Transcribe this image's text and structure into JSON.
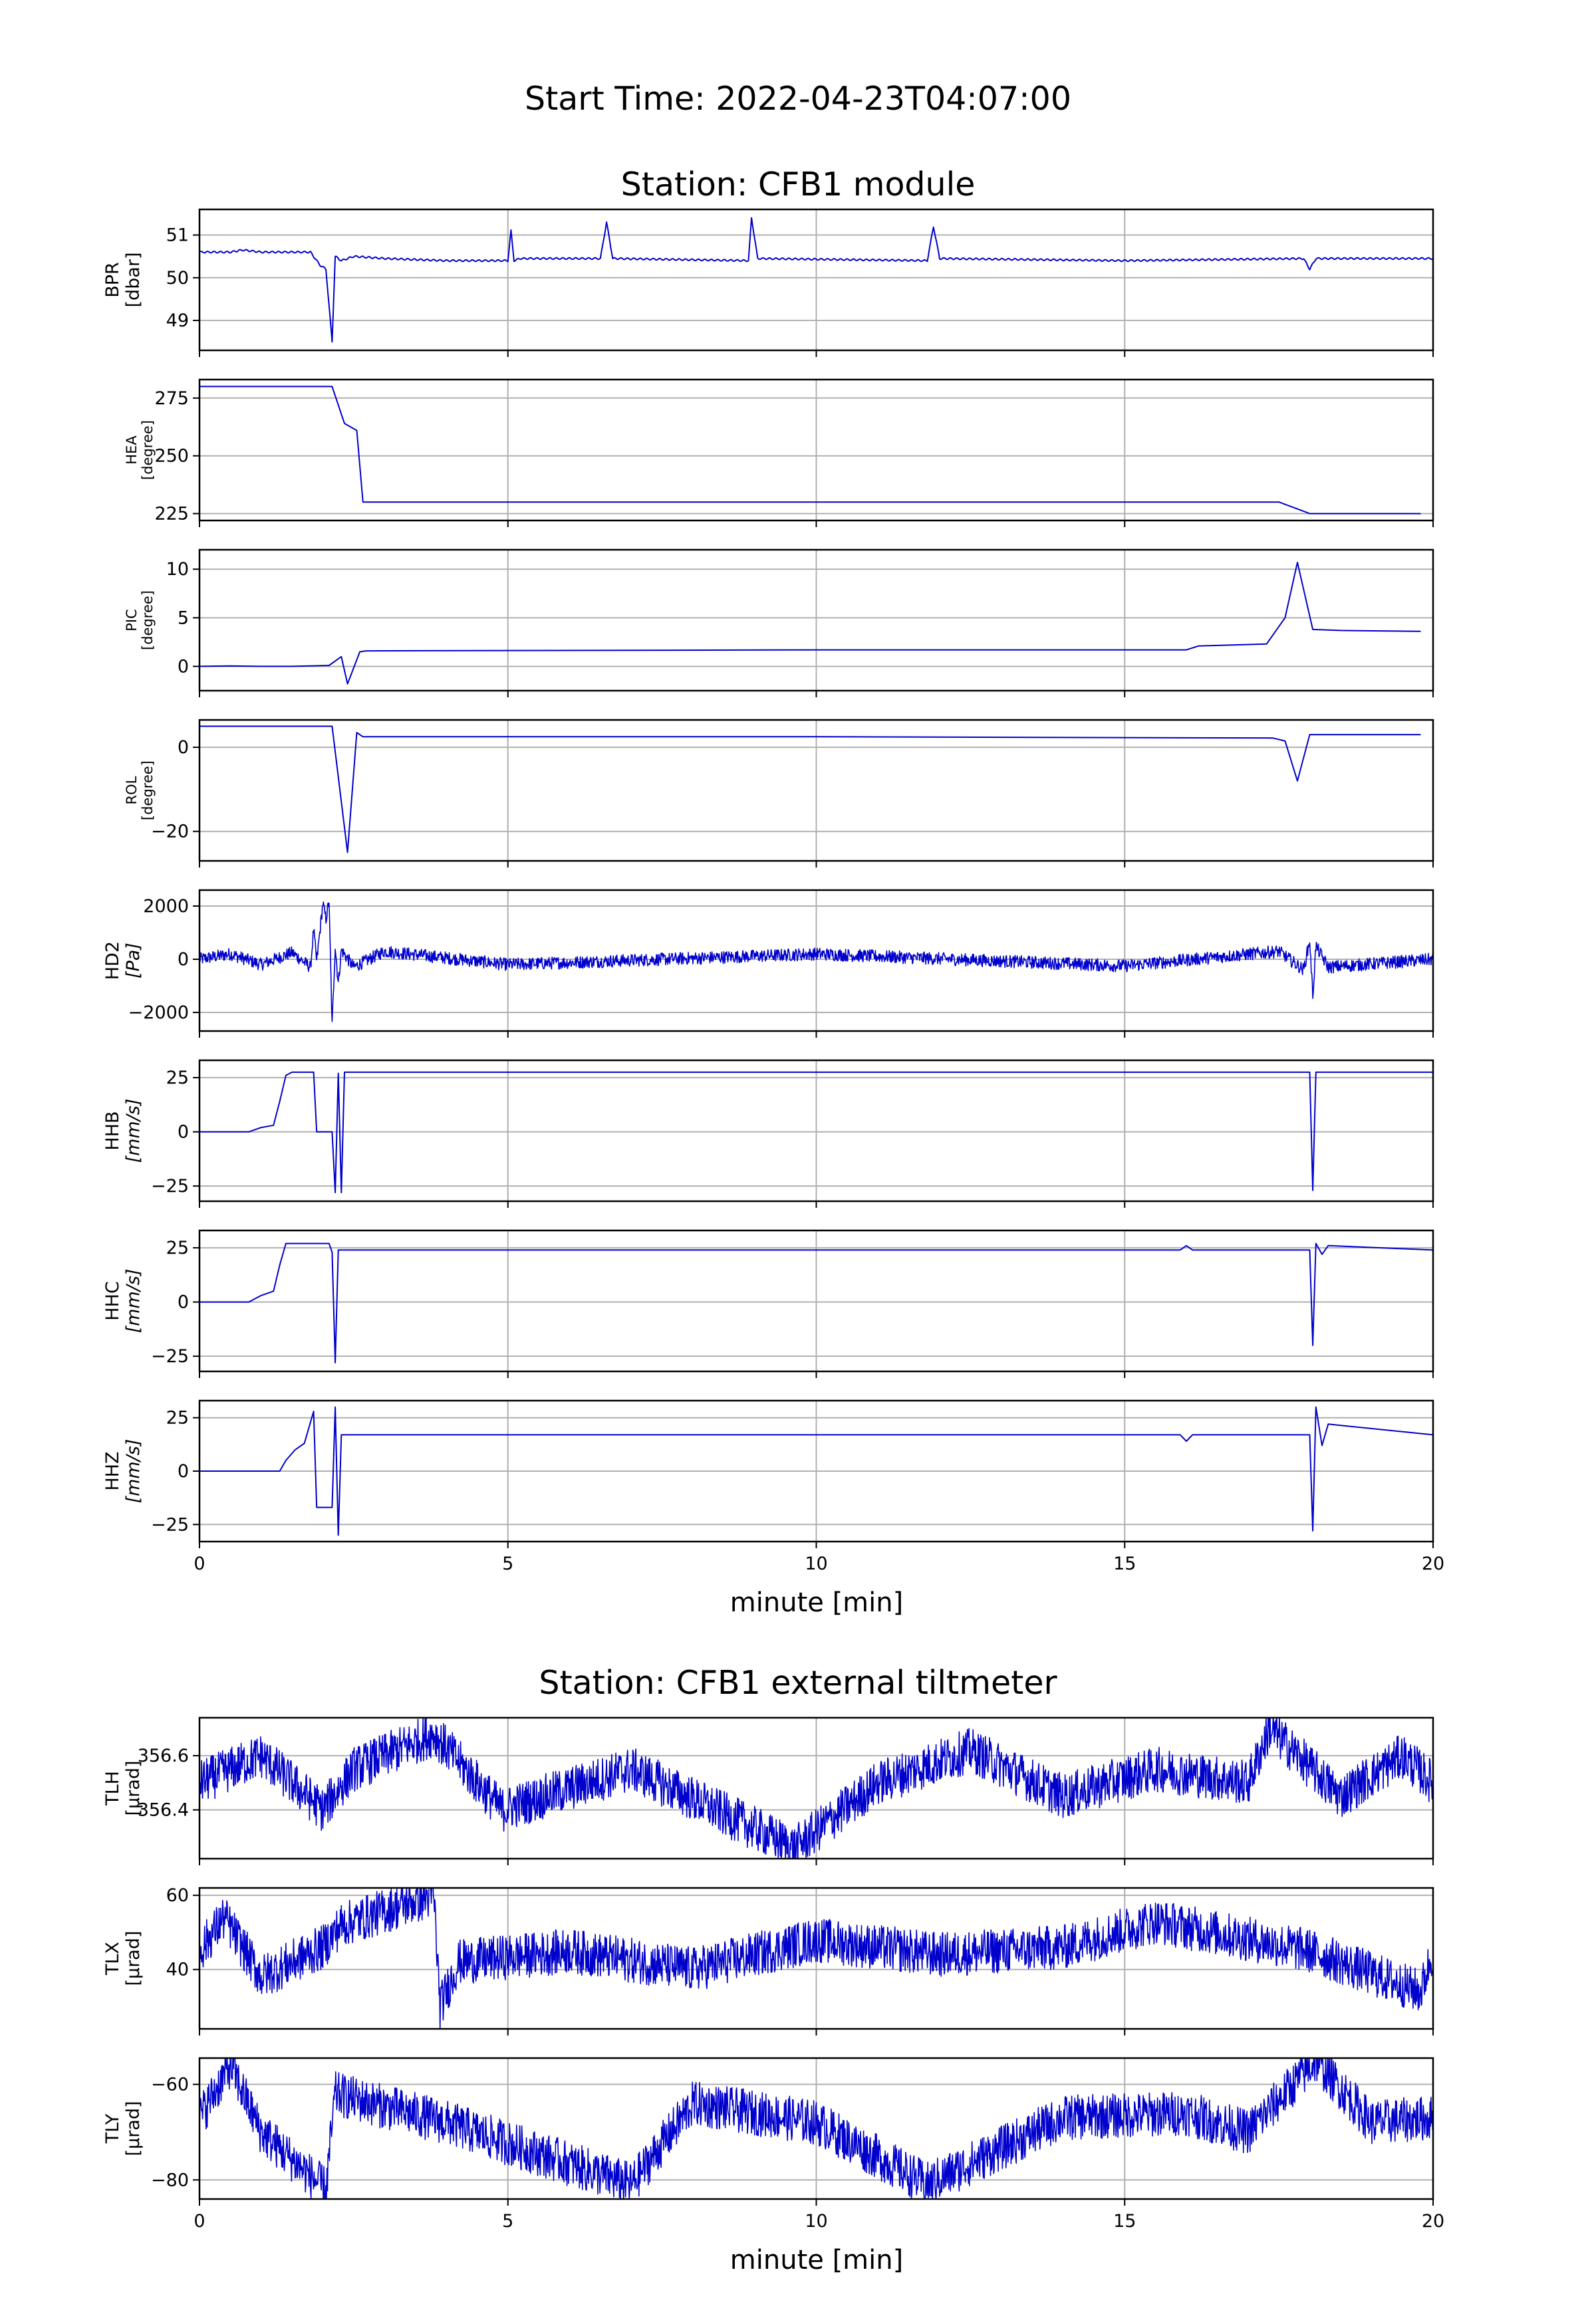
{
  "suptitle": "Start Time: 2022-04-23T04:07:00",
  "sections": [
    {
      "title": "Station: CFB1 module"
    },
    {
      "title": "Station: CFB1 external tiltmeter"
    }
  ],
  "x_axis_label": "minute [min]",
  "x_ticks": [
    0,
    5,
    10,
    15,
    20
  ],
  "line_color": "#0000cc",
  "grid_color": "#b0b0b0",
  "chart_data": [
    {
      "type": "line",
      "section": 0,
      "ylabel": [
        "BPR",
        "[dbar]"
      ],
      "ylabel_small": false,
      "ylim": [
        48.3,
        51.6
      ],
      "yticks": [
        49,
        50,
        51
      ],
      "xlim": [
        0,
        20
      ],
      "series": [
        {
          "x": [
            0,
            0.5,
            0.7,
            1.0,
            1.5,
            1.8,
            1.95,
            2.05,
            2.15,
            2.2,
            2.3,
            2.5,
            3.0,
            4.0,
            5.0,
            5.05,
            5.1,
            5.2,
            6.5,
            6.6,
            6.7,
            8.9,
            8.95,
            9.05,
            11.8,
            11.9,
            12.0,
            15.0,
            17.9,
            18.0,
            18.1,
            19.9
          ],
          "y": [
            50.6,
            50.6,
            50.65,
            50.6,
            50.6,
            50.6,
            50.3,
            50.2,
            48.5,
            50.5,
            50.4,
            50.5,
            50.45,
            50.4,
            50.4,
            51.1,
            50.4,
            50.45,
            50.45,
            51.3,
            50.45,
            50.4,
            51.4,
            50.45,
            50.4,
            51.2,
            50.45,
            50.4,
            50.45,
            50.2,
            50.45,
            50.45
          ]
        }
      ]
    },
    {
      "type": "line",
      "section": 0,
      "ylabel": [
        "HEA",
        "[degree]"
      ],
      "ylabel_small": true,
      "ylim": [
        222,
        283
      ],
      "yticks": [
        225,
        250,
        275
      ],
      "xlim": [
        0,
        20
      ],
      "series": [
        {
          "x": [
            0,
            1.5,
            2.15,
            2.35,
            2.55,
            2.65,
            10,
            17.5,
            17.8,
            18.0,
            19.8
          ],
          "y": [
            280,
            280,
            280,
            264,
            261,
            230,
            230,
            230,
            227,
            225,
            225
          ]
        }
      ]
    },
    {
      "type": "line",
      "section": 0,
      "ylabel": [
        "PIC",
        "[degree]"
      ],
      "ylabel_small": true,
      "ylim": [
        -2.5,
        12
      ],
      "yticks": [
        0,
        5,
        10
      ],
      "xlim": [
        0,
        20
      ],
      "series": [
        {
          "x": [
            0,
            0.5,
            1.0,
            1.5,
            2.1,
            2.3,
            2.4,
            2.6,
            2.7,
            10,
            16.0,
            16.2,
            17.3,
            17.6,
            17.8,
            18.05,
            18.5,
            19.8
          ],
          "y": [
            0,
            0.05,
            0,
            0,
            0.1,
            1.0,
            -1.8,
            1.5,
            1.6,
            1.7,
            1.7,
            2.1,
            2.3,
            5.0,
            10.7,
            3.8,
            3.7,
            3.6
          ]
        }
      ]
    },
    {
      "type": "line",
      "section": 0,
      "ylabel": [
        "ROL",
        "[degree]"
      ],
      "ylabel_small": true,
      "ylim": [
        -27,
        6.5
      ],
      "yticks": [
        -20,
        0
      ],
      "xlim": [
        0,
        20
      ],
      "series": [
        {
          "x": [
            0,
            1.5,
            2.15,
            2.4,
            2.55,
            2.65,
            10,
            17.4,
            17.6,
            17.8,
            18.0,
            19.8
          ],
          "y": [
            5,
            5,
            5,
            -25,
            3.5,
            2.5,
            2.5,
            2.2,
            1.5,
            -8,
            3,
            3
          ]
        }
      ]
    },
    {
      "type": "line",
      "section": 0,
      "ylabel": [
        "HD2",
        "[Pa]"
      ],
      "ylabel_small": false,
      "ylim": [
        -2700,
        2600
      ],
      "yticks": [
        -2000,
        0,
        2000
      ],
      "xlim": [
        0,
        20
      ],
      "series": [
        {
          "x": [
            0,
            0.5,
            1.0,
            1.5,
            1.8,
            1.85,
            1.9,
            2.0,
            2.05,
            2.1,
            2.15,
            2.2,
            2.25,
            2.3,
            2.5,
            3.0,
            5.0,
            10.0,
            15.0,
            17.5,
            17.9,
            18.0,
            18.05,
            18.1,
            18.3,
            20
          ],
          "y": [
            0,
            200,
            -200,
            250,
            -300,
            1100,
            -100,
            2100,
            1500,
            2200,
            -2500,
            500,
            -900,
            350,
            -300,
            300,
            -200,
            200,
            -250,
            300,
            -400,
            700,
            -1400,
            500,
            -300,
            0
          ]
        }
      ]
    },
    {
      "type": "line",
      "section": 0,
      "ylabel": [
        "HHB",
        "[mm/s]"
      ],
      "ylabel_small": false,
      "ylim": [
        -32,
        33
      ],
      "yticks": [
        -25,
        0,
        25
      ],
      "xlim": [
        0,
        20
      ],
      "series": [
        {
          "x": [
            0,
            0.8,
            1.0,
            1.2,
            1.3,
            1.4,
            1.5,
            1.85,
            1.9,
            2.15,
            2.2,
            2.25,
            2.3,
            2.35,
            10,
            18.0,
            18.05,
            18.1,
            20
          ],
          "y": [
            0,
            0,
            2,
            3,
            14,
            26,
            27.5,
            27.5,
            0,
            0,
            -28,
            27,
            -28,
            27.5,
            27.5,
            27.5,
            -27,
            27.5,
            27.5
          ]
        }
      ]
    },
    {
      "type": "line",
      "section": 0,
      "ylabel": [
        "HHC",
        "[mm/s]"
      ],
      "ylabel_small": false,
      "ylim": [
        -32,
        33
      ],
      "yticks": [
        -25,
        0,
        25
      ],
      "xlim": [
        0,
        20
      ],
      "series": [
        {
          "x": [
            0,
            0.8,
            1.0,
            1.2,
            1.3,
            1.4,
            1.9,
            2.1,
            2.15,
            2.2,
            2.25,
            2.3,
            10,
            15.9,
            16.0,
            16.1,
            18.0,
            18.05,
            18.1,
            18.2,
            18.3,
            20
          ],
          "y": [
            0,
            0,
            3,
            5,
            17,
            27,
            27,
            27,
            23,
            -28,
            24,
            24,
            24,
            24,
            26,
            24,
            24,
            -20,
            27,
            22,
            26,
            24
          ]
        }
      ]
    },
    {
      "type": "line",
      "section": 0,
      "ylabel": [
        "HHZ",
        "[mm/s]"
      ],
      "ylabel_small": false,
      "ylim": [
        -33,
        33
      ],
      "yticks": [
        -25,
        0,
        25
      ],
      "xlim": [
        0,
        20
      ],
      "series": [
        {
          "x": [
            0,
            1.3,
            1.4,
            1.55,
            1.7,
            1.85,
            1.9,
            1.95,
            2.15,
            2.2,
            2.25,
            2.3,
            2.35,
            10,
            15.9,
            16.0,
            16.1,
            18.0,
            18.05,
            18.1,
            18.2,
            18.3,
            20
          ],
          "y": [
            0,
            0,
            5,
            10,
            13,
            28,
            -17,
            -17,
            -17,
            30,
            -30,
            17,
            17,
            17,
            17,
            14,
            17,
            17,
            -28,
            30,
            12,
            22,
            17
          ]
        }
      ]
    },
    {
      "type": "line",
      "section": 1,
      "ylabel": [
        "TLH",
        "[μrad]"
      ],
      "ylabel_small": false,
      "ylim": [
        356.22,
        356.74
      ],
      "yticks": [
        356.4,
        356.6
      ],
      "xlim": [
        0,
        20
      ],
      "series": [
        {
          "x": [
            0,
            1.0,
            2.0,
            2.5,
            3.8,
            4.9,
            7.0,
            9.65,
            11.0,
            12.5,
            14.0,
            15.5,
            17.0,
            17.35,
            18.5,
            19.5,
            20
          ],
          "y": [
            356.5,
            356.6,
            356.4,
            356.55,
            356.68,
            356.4,
            356.55,
            356.26,
            356.5,
            356.62,
            356.45,
            356.55,
            356.5,
            356.7,
            356.45,
            356.6,
            356.5
          ]
        }
      ]
    },
    {
      "type": "line",
      "section": 1,
      "ylabel": [
        "TLX",
        "[μrad]"
      ],
      "ylabel_small": false,
      "ylim": [
        24,
        62
      ],
      "yticks": [
        40,
        60
      ],
      "xlim": [
        0,
        20
      ],
      "series": [
        {
          "x": [
            0,
            0.4,
            1.0,
            2.0,
            2.3,
            3.8,
            3.9,
            4.2,
            6.0,
            8.0,
            10.0,
            12.0,
            14.0,
            15.5,
            18.0,
            19.8,
            20
          ],
          "y": [
            45,
            54,
            38,
            46,
            52,
            60,
            30,
            42,
            45,
            40,
            48,
            44,
            46,
            53,
            45,
            34,
            45
          ]
        }
      ]
    },
    {
      "type": "line",
      "section": 1,
      "ylabel": [
        "TLY",
        "[μrad]"
      ],
      "ylabel_small": false,
      "ylim": [
        -84,
        -54.5
      ],
      "yticks": [
        -80,
        -60
      ],
      "xlim": [
        0,
        20
      ],
      "series": [
        {
          "x": [
            0,
            0.5,
            1.0,
            2.05,
            2.2,
            4.0,
            7.0,
            8.0,
            10.0,
            11.8,
            14.0,
            16.0,
            17.0,
            18.1,
            19.0,
            20
          ],
          "y": [
            -67,
            -56,
            -70,
            -82,
            -62,
            -68,
            -81,
            -64,
            -68,
            -81,
            -67,
            -66,
            -70,
            -55,
            -68,
            -67
          ]
        }
      ]
    }
  ]
}
